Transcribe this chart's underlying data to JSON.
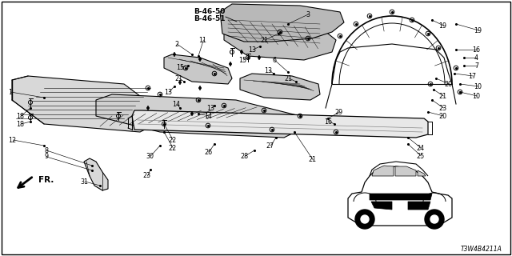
{
  "fig_width": 6.4,
  "fig_height": 3.2,
  "dpi": 100,
  "bg_color": "#ffffff",
  "diagram_id": "T3W4B4211A",
  "title_line1": "B-46-50",
  "title_line2": "B-46-51",
  "border": true
}
